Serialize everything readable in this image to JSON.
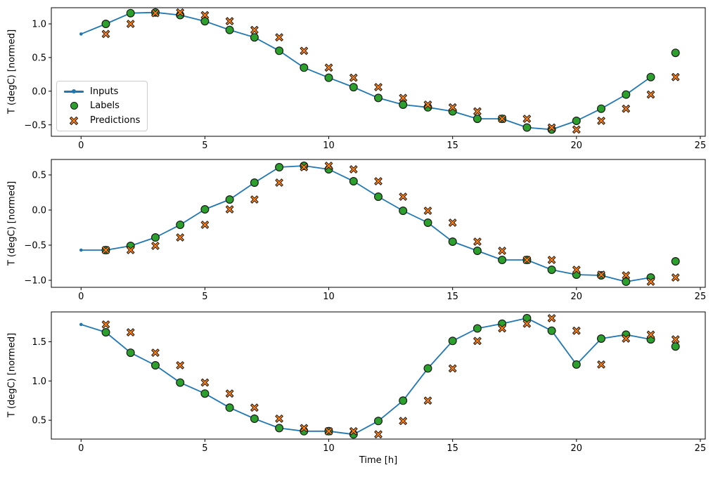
{
  "figure": {
    "background": "#ffffff",
    "text_color": "#000000",
    "legend": {
      "position": "center-left of subplot 1",
      "items": [
        {
          "label": "Inputs",
          "marker": "line-with-dot",
          "color": "#1f77b4"
        },
        {
          "label": "Labels",
          "marker": "circle",
          "color": "#2ca02c",
          "edge_color": "#1a1a1a"
        },
        {
          "label": "Predictions",
          "marker": "thick-x",
          "color": "#ff7f0e",
          "edge_color": "#1a1a1a"
        }
      ]
    }
  },
  "chart_data": [
    {
      "type": "line",
      "title": "",
      "ylabel": "T (degC) [normed]",
      "xlabel": "",
      "xlim": [
        -1.2,
        25.2
      ],
      "ylim": [
        -0.67,
        1.24
      ],
      "xticks": [
        0,
        5,
        10,
        15,
        20,
        25
      ],
      "yticks": [
        1.0,
        0.5,
        0.0,
        -0.5
      ],
      "grid": false,
      "legend_visible": true,
      "series": [
        {
          "name": "Inputs",
          "type": "line",
          "marker": "dot",
          "color": "#1f77b4",
          "x": [
            0,
            1,
            2,
            3,
            4,
            5,
            6,
            7,
            8,
            9,
            10,
            11,
            12,
            13,
            14,
            15,
            16,
            17,
            18,
            19,
            20,
            21,
            22,
            23
          ],
          "y": [
            0.85,
            1.0,
            1.16,
            1.17,
            1.13,
            1.04,
            0.91,
            0.8,
            0.6,
            0.35,
            0.2,
            0.06,
            -0.1,
            -0.2,
            -0.24,
            -0.3,
            -0.41,
            -0.41,
            -0.54,
            -0.57,
            -0.44,
            -0.26,
            -0.05,
            0.21
          ]
        },
        {
          "name": "Labels",
          "type": "scatter",
          "marker": "circle",
          "color": "#2ca02c",
          "edge_color": "#1a1a1a",
          "x": [
            1,
            2,
            3,
            4,
            5,
            6,
            7,
            8,
            9,
            10,
            11,
            12,
            13,
            14,
            15,
            16,
            17,
            18,
            19,
            20,
            21,
            22,
            23,
            24
          ],
          "y": [
            1.0,
            1.16,
            1.17,
            1.13,
            1.04,
            0.91,
            0.8,
            0.6,
            0.35,
            0.2,
            0.06,
            -0.1,
            -0.2,
            -0.24,
            -0.3,
            -0.41,
            -0.41,
            -0.54,
            -0.57,
            -0.44,
            -0.26,
            -0.05,
            0.21,
            0.57
          ]
        },
        {
          "name": "Predictions",
          "type": "scatter",
          "marker": "X",
          "color": "#ff7f0e",
          "edge_color": "#1a1a1a",
          "x": [
            1,
            2,
            3,
            4,
            5,
            6,
            7,
            8,
            9,
            10,
            11,
            12,
            13,
            14,
            15,
            16,
            17,
            18,
            19,
            20,
            21,
            22,
            23,
            24
          ],
          "y": [
            0.85,
            1.0,
            1.16,
            1.17,
            1.13,
            1.04,
            0.91,
            0.8,
            0.6,
            0.35,
            0.2,
            0.06,
            -0.1,
            -0.2,
            -0.24,
            -0.3,
            -0.41,
            -0.41,
            -0.54,
            -0.57,
            -0.44,
            -0.26,
            -0.05,
            0.21
          ]
        }
      ]
    },
    {
      "type": "line",
      "title": "",
      "ylabel": "T (degC) [normed]",
      "xlabel": "",
      "xlim": [
        -1.2,
        25.2
      ],
      "ylim": [
        -1.1,
        0.72
      ],
      "xticks": [
        0,
        5,
        10,
        15,
        20,
        25
      ],
      "yticks": [
        0.5,
        0.0,
        -0.5,
        -1.0
      ],
      "grid": false,
      "legend_visible": false,
      "series": [
        {
          "name": "Inputs",
          "type": "line",
          "marker": "dot",
          "color": "#1f77b4",
          "x": [
            0,
            1,
            2,
            3,
            4,
            5,
            6,
            7,
            8,
            9,
            10,
            11,
            12,
            13,
            14,
            15,
            16,
            17,
            18,
            19,
            20,
            21,
            22,
            23
          ],
          "y": [
            -0.57,
            -0.57,
            -0.51,
            -0.39,
            -0.21,
            0.01,
            0.15,
            0.39,
            0.61,
            0.63,
            0.58,
            0.41,
            0.19,
            -0.01,
            -0.18,
            -0.45,
            -0.58,
            -0.71,
            -0.71,
            -0.85,
            -0.92,
            -0.93,
            -1.02,
            -0.96
          ]
        },
        {
          "name": "Labels",
          "type": "scatter",
          "marker": "circle",
          "color": "#2ca02c",
          "edge_color": "#1a1a1a",
          "x": [
            1,
            2,
            3,
            4,
            5,
            6,
            7,
            8,
            9,
            10,
            11,
            12,
            13,
            14,
            15,
            16,
            17,
            18,
            19,
            20,
            21,
            22,
            23,
            24
          ],
          "y": [
            -0.57,
            -0.51,
            -0.39,
            -0.21,
            0.01,
            0.15,
            0.39,
            0.61,
            0.63,
            0.58,
            0.41,
            0.19,
            -0.01,
            -0.18,
            -0.45,
            -0.58,
            -0.71,
            -0.71,
            -0.85,
            -0.92,
            -0.93,
            -1.02,
            -0.96,
            -0.73
          ]
        },
        {
          "name": "Predictions",
          "type": "scatter",
          "marker": "X",
          "color": "#ff7f0e",
          "edge_color": "#1a1a1a",
          "x": [
            1,
            2,
            3,
            4,
            5,
            6,
            7,
            8,
            9,
            10,
            11,
            12,
            13,
            14,
            15,
            16,
            17,
            18,
            19,
            20,
            21,
            22,
            23,
            24
          ],
          "y": [
            -0.57,
            -0.57,
            -0.51,
            -0.39,
            -0.21,
            0.01,
            0.15,
            0.39,
            0.61,
            0.63,
            0.58,
            0.41,
            0.19,
            -0.01,
            -0.18,
            -0.45,
            -0.58,
            -0.71,
            -0.71,
            -0.85,
            -0.92,
            -0.93,
            -1.02,
            -0.96
          ]
        }
      ]
    },
    {
      "type": "line",
      "title": "",
      "ylabel": "T (degC) [normed]",
      "xlabel": "Time [h]",
      "xlim": [
        -1.2,
        25.2
      ],
      "ylim": [
        0.26,
        1.88
      ],
      "xticks": [
        0,
        5,
        10,
        15,
        20,
        25
      ],
      "yticks": [
        1.5,
        1.0,
        0.5
      ],
      "grid": false,
      "legend_visible": false,
      "series": [
        {
          "name": "Inputs",
          "type": "line",
          "marker": "dot",
          "color": "#1f77b4",
          "x": [
            0,
            1,
            2,
            3,
            4,
            5,
            6,
            7,
            8,
            9,
            10,
            11,
            12,
            13,
            14,
            15,
            16,
            17,
            18,
            19,
            20,
            21,
            22,
            23
          ],
          "y": [
            1.72,
            1.62,
            1.36,
            1.2,
            0.98,
            0.84,
            0.66,
            0.52,
            0.4,
            0.36,
            0.36,
            0.32,
            0.49,
            0.75,
            1.16,
            1.51,
            1.67,
            1.73,
            1.8,
            1.64,
            1.21,
            1.54,
            1.59,
            1.53
          ]
        },
        {
          "name": "Labels",
          "type": "scatter",
          "marker": "circle",
          "color": "#2ca02c",
          "edge_color": "#1a1a1a",
          "x": [
            1,
            2,
            3,
            4,
            5,
            6,
            7,
            8,
            9,
            10,
            11,
            12,
            13,
            14,
            15,
            16,
            17,
            18,
            19,
            20,
            21,
            22,
            23,
            24
          ],
          "y": [
            1.62,
            1.36,
            1.2,
            0.98,
            0.84,
            0.66,
            0.52,
            0.4,
            0.36,
            0.36,
            0.32,
            0.49,
            0.75,
            1.16,
            1.51,
            1.67,
            1.73,
            1.8,
            1.64,
            1.21,
            1.54,
            1.59,
            1.53,
            1.44
          ]
        },
        {
          "name": "Predictions",
          "type": "scatter",
          "marker": "X",
          "color": "#ff7f0e",
          "edge_color": "#1a1a1a",
          "x": [
            1,
            2,
            3,
            4,
            5,
            6,
            7,
            8,
            9,
            10,
            11,
            12,
            13,
            14,
            15,
            16,
            17,
            18,
            19,
            20,
            21,
            22,
            23,
            24
          ],
          "y": [
            1.72,
            1.62,
            1.36,
            1.2,
            0.98,
            0.84,
            0.66,
            0.52,
            0.4,
            0.36,
            0.36,
            0.32,
            0.49,
            0.75,
            1.16,
            1.51,
            1.67,
            1.73,
            1.8,
            1.64,
            1.21,
            1.54,
            1.59,
            1.53
          ]
        }
      ]
    }
  ]
}
